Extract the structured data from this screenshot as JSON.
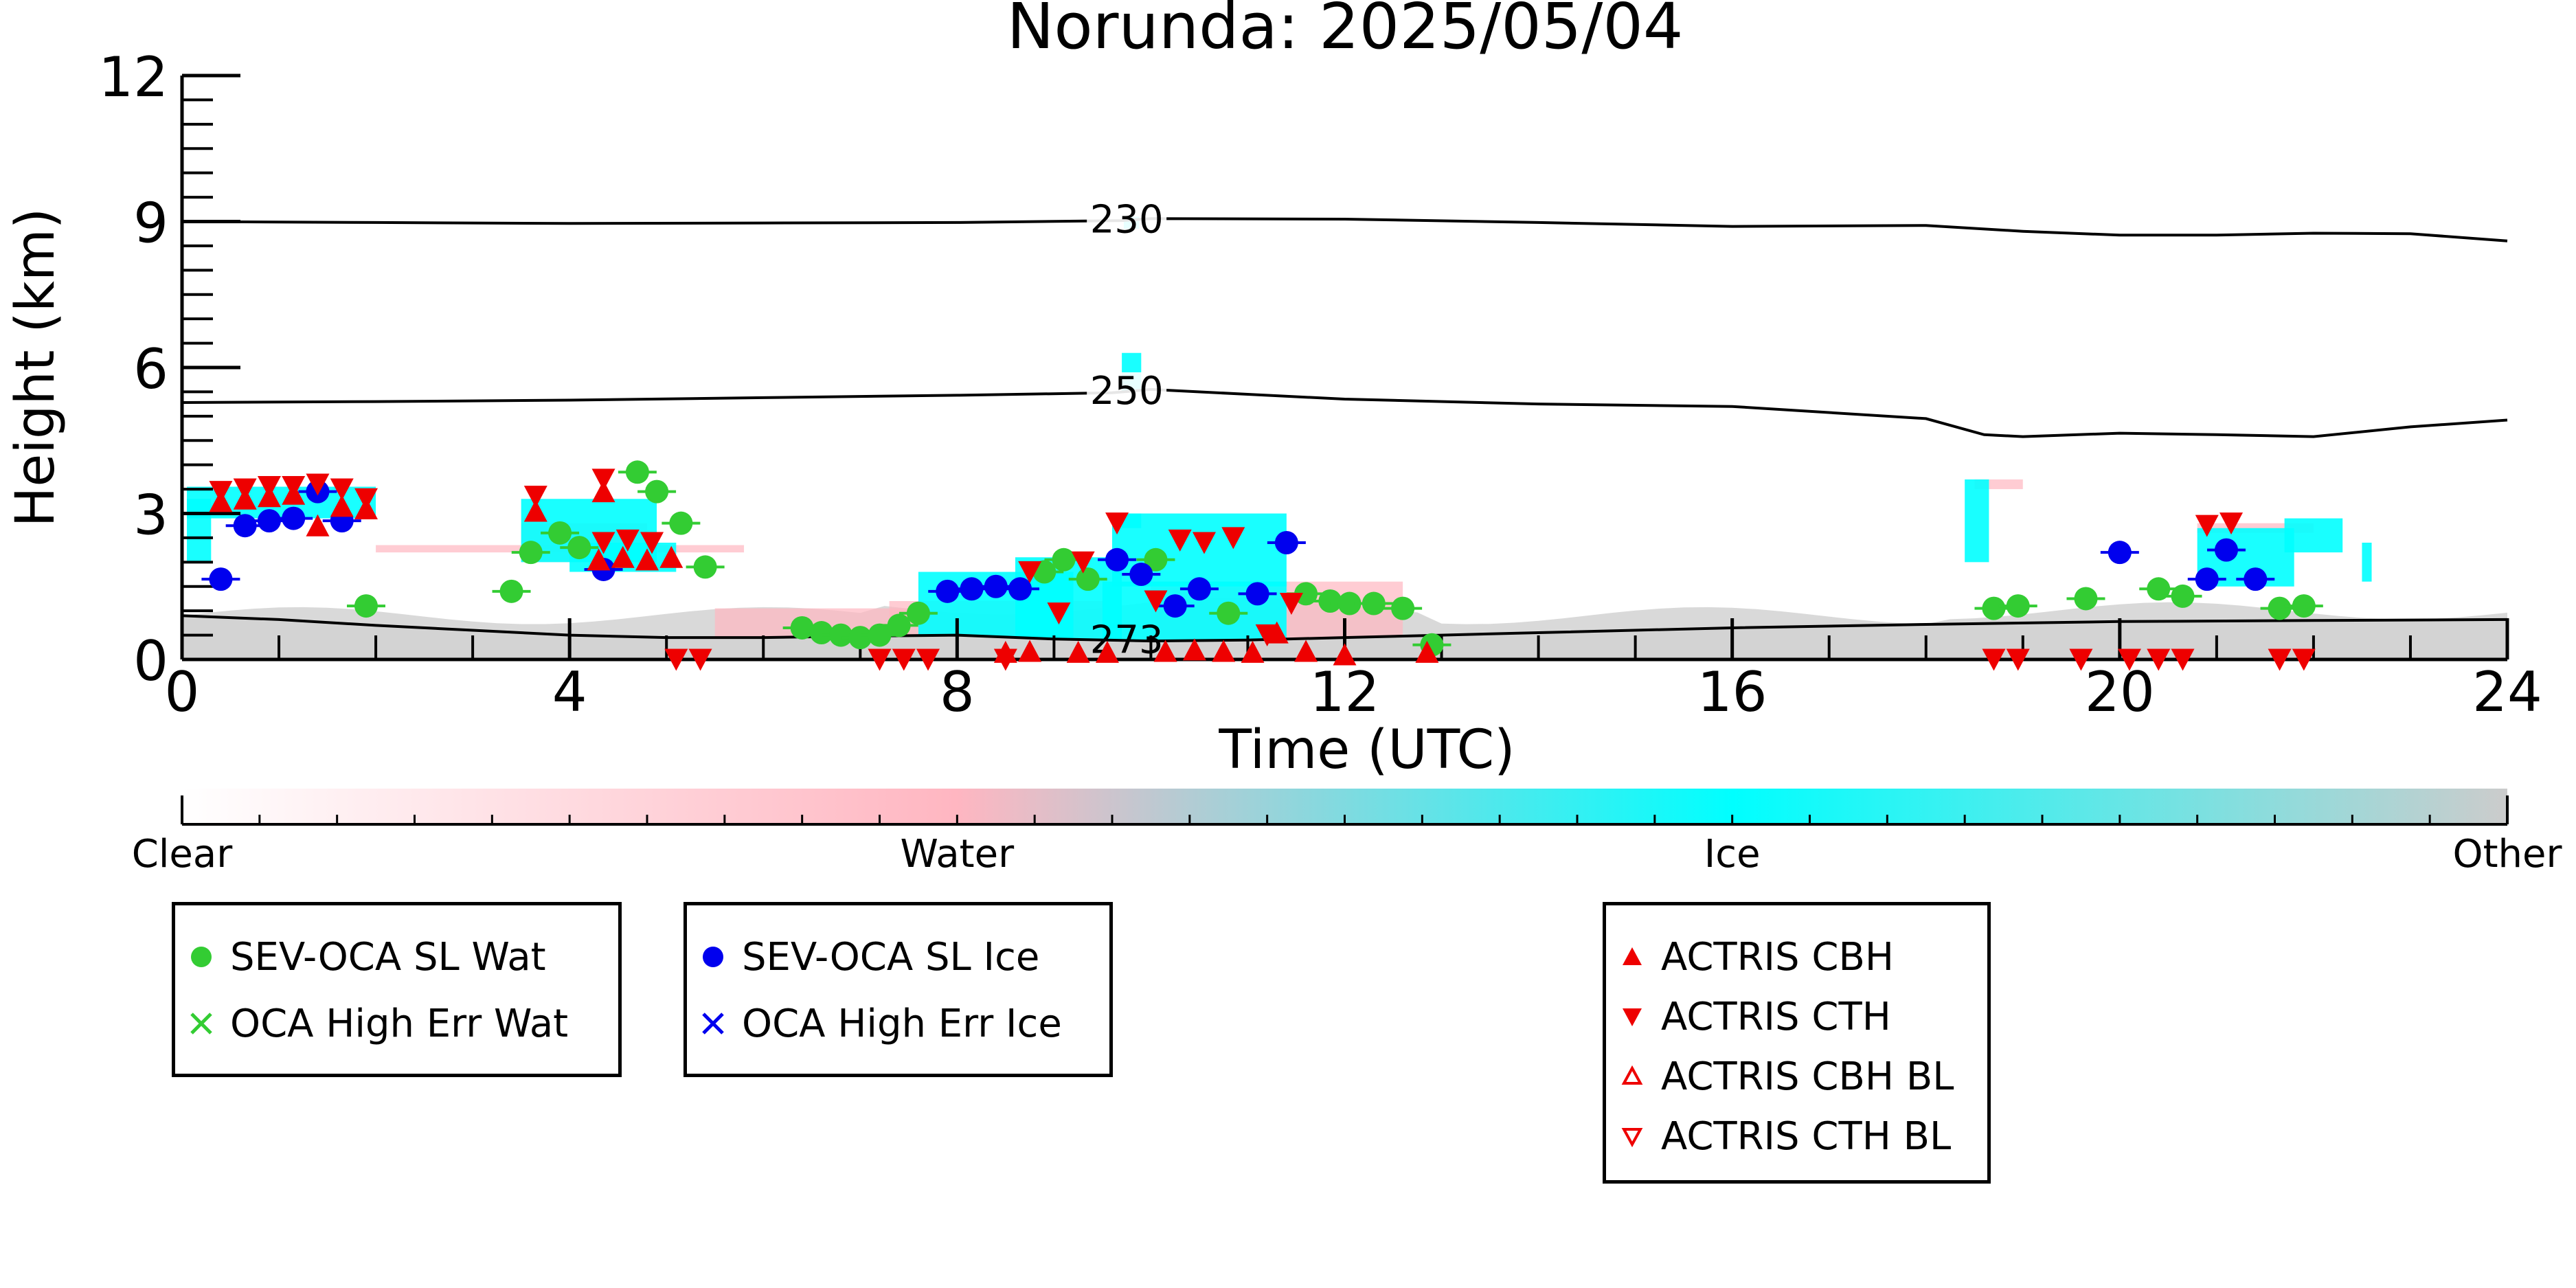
{
  "chart_data": {
    "type": "scatter",
    "title": "Norunda: 2025/05/04",
    "xlabel": "Time (UTC)",
    "ylabel": "Height (km)",
    "xlim": [
      0,
      24
    ],
    "ylim": [
      0,
      12
    ],
    "xticks": [
      0,
      4,
      8,
      12,
      16,
      20,
      24
    ],
    "yticks": [
      0,
      3,
      6,
      9,
      12
    ],
    "grid": false,
    "contours": [
      {
        "label": "230",
        "points": [
          [
            0,
            9.0
          ],
          [
            2,
            8.98
          ],
          [
            4,
            8.96
          ],
          [
            6,
            8.97
          ],
          [
            8,
            8.98
          ],
          [
            9.7,
            9.02
          ],
          [
            10,
            9.06
          ],
          [
            12,
            9.05
          ],
          [
            14,
            8.98
          ],
          [
            16,
            8.9
          ],
          [
            18,
            8.92
          ],
          [
            19,
            8.8
          ],
          [
            20,
            8.72
          ],
          [
            21,
            8.72
          ],
          [
            22,
            8.76
          ],
          [
            23,
            8.75
          ],
          [
            24,
            8.6
          ]
        ]
      },
      {
        "label": "250",
        "points": [
          [
            0,
            5.28
          ],
          [
            2,
            5.3
          ],
          [
            4,
            5.33
          ],
          [
            6,
            5.38
          ],
          [
            8,
            5.43
          ],
          [
            9.6,
            5.48
          ],
          [
            10,
            5.55
          ],
          [
            11,
            5.45
          ],
          [
            12,
            5.35
          ],
          [
            14,
            5.25
          ],
          [
            16,
            5.2
          ],
          [
            18,
            4.95
          ],
          [
            18.6,
            4.62
          ],
          [
            19,
            4.58
          ],
          [
            20,
            4.65
          ],
          [
            21,
            4.62
          ],
          [
            22,
            4.58
          ],
          [
            23,
            4.78
          ],
          [
            24,
            4.92
          ]
        ]
      },
      {
        "label": "273",
        "points": [
          [
            0,
            0.9
          ],
          [
            1,
            0.82
          ],
          [
            2,
            0.7
          ],
          [
            3,
            0.6
          ],
          [
            4,
            0.5
          ],
          [
            5,
            0.45
          ],
          [
            6,
            0.45
          ],
          [
            7,
            0.48
          ],
          [
            8,
            0.5
          ],
          [
            9,
            0.42
          ],
          [
            10,
            0.38
          ],
          [
            11,
            0.4
          ],
          [
            12,
            0.45
          ],
          [
            13,
            0.5
          ],
          [
            14,
            0.55
          ],
          [
            16,
            0.65
          ],
          [
            18,
            0.72
          ],
          [
            20,
            0.78
          ],
          [
            22,
            0.8
          ],
          [
            24,
            0.82
          ]
        ]
      }
    ],
    "series": [
      {
        "name": "SEV-OCA SL Wat",
        "color": "#33cc33",
        "marker": "circle",
        "points": [
          [
            1.9,
            1.1
          ],
          [
            3.4,
            1.4
          ],
          [
            3.6,
            2.2
          ],
          [
            3.9,
            2.6
          ],
          [
            4.1,
            2.3
          ],
          [
            4.7,
            3.85
          ],
          [
            4.9,
            3.45
          ],
          [
            5.15,
            2.8
          ],
          [
            5.4,
            1.9
          ],
          [
            6.4,
            0.65
          ],
          [
            6.6,
            0.55
          ],
          [
            6.8,
            0.5
          ],
          [
            7.0,
            0.45
          ],
          [
            7.2,
            0.5
          ],
          [
            7.4,
            0.7
          ],
          [
            7.6,
            0.95
          ],
          [
            8.9,
            1.8
          ],
          [
            9.1,
            2.05
          ],
          [
            9.35,
            1.65
          ],
          [
            10.05,
            2.05
          ],
          [
            10.8,
            0.95
          ],
          [
            11.6,
            1.35
          ],
          [
            11.85,
            1.2
          ],
          [
            12.05,
            1.15
          ],
          [
            12.3,
            1.15
          ],
          [
            12.6,
            1.05
          ],
          [
            12.9,
            0.3
          ],
          [
            18.7,
            1.05
          ],
          [
            18.95,
            1.1
          ],
          [
            19.65,
            1.25
          ],
          [
            20.4,
            1.45
          ],
          [
            20.65,
            1.3
          ],
          [
            21.65,
            1.05
          ],
          [
            21.9,
            1.1
          ]
        ]
      },
      {
        "name": "OCA High Err Wat",
        "color": "#33cc33",
        "marker": "x",
        "points": []
      },
      {
        "name": "SEV-OCA SL Ice",
        "color": "#0000ee",
        "marker": "circle",
        "points": [
          [
            0.4,
            1.65
          ],
          [
            0.65,
            2.75
          ],
          [
            0.9,
            2.85
          ],
          [
            1.15,
            2.9
          ],
          [
            1.4,
            3.45
          ],
          [
            1.65,
            2.85
          ],
          [
            4.35,
            1.85
          ],
          [
            7.9,
            1.4
          ],
          [
            8.15,
            1.45
          ],
          [
            8.4,
            1.5
          ],
          [
            8.65,
            1.45
          ],
          [
            9.65,
            2.05
          ],
          [
            9.9,
            1.75
          ],
          [
            10.25,
            1.1
          ],
          [
            10.5,
            1.45
          ],
          [
            11.1,
            1.35
          ],
          [
            11.4,
            2.4
          ],
          [
            20.0,
            2.2
          ],
          [
            20.9,
            1.65
          ],
          [
            21.1,
            2.25
          ],
          [
            21.4,
            1.65
          ]
        ]
      },
      {
        "name": "OCA High Err Ice",
        "color": "#0000ee",
        "marker": "x",
        "points": []
      },
      {
        "name": "ACTRIS CBH",
        "color": "#ee0000",
        "marker": "triangle-up",
        "points": [
          [
            0.4,
            3.2
          ],
          [
            0.65,
            3.25
          ],
          [
            0.9,
            3.3
          ],
          [
            1.15,
            3.35
          ],
          [
            1.4,
            2.7
          ],
          [
            1.65,
            3.1
          ],
          [
            1.9,
            3.05
          ],
          [
            3.65,
            3.0
          ],
          [
            4.35,
            3.4
          ],
          [
            4.3,
            2.0
          ],
          [
            4.55,
            2.05
          ],
          [
            4.8,
            2.0
          ],
          [
            5.05,
            2.05
          ],
          [
            8.5,
            0.1
          ],
          [
            8.75,
            0.12
          ],
          [
            9.25,
            0.1
          ],
          [
            9.55,
            0.1
          ],
          [
            10.15,
            0.12
          ],
          [
            10.45,
            0.15
          ],
          [
            10.75,
            0.12
          ],
          [
            11.05,
            0.1
          ],
          [
            11.3,
            0.5
          ],
          [
            11.6,
            0.12
          ],
          [
            12.0,
            0.05
          ],
          [
            12.85,
            0.1
          ]
        ]
      },
      {
        "name": "ACTRIS CTH",
        "color": "#ee0000",
        "marker": "triangle-down",
        "points": [
          [
            0.4,
            3.5
          ],
          [
            0.65,
            3.55
          ],
          [
            0.9,
            3.6
          ],
          [
            1.15,
            3.6
          ],
          [
            1.4,
            3.65
          ],
          [
            1.65,
            3.55
          ],
          [
            1.9,
            3.35
          ],
          [
            3.65,
            3.4
          ],
          [
            4.35,
            3.75
          ],
          [
            4.35,
            2.45
          ],
          [
            4.6,
            2.5
          ],
          [
            4.85,
            2.45
          ],
          [
            5.1,
            0.05
          ],
          [
            5.35,
            0.05
          ],
          [
            7.2,
            0.05
          ],
          [
            7.45,
            0.05
          ],
          [
            7.7,
            0.05
          ],
          [
            8.5,
            0.05
          ],
          [
            8.75,
            1.85
          ],
          [
            9.05,
            1.0
          ],
          [
            9.3,
            2.05
          ],
          [
            9.65,
            2.85
          ],
          [
            10.05,
            1.25
          ],
          [
            10.3,
            2.5
          ],
          [
            10.55,
            2.45
          ],
          [
            10.85,
            2.55
          ],
          [
            11.2,
            0.55
          ],
          [
            11.45,
            1.2
          ],
          [
            18.7,
            0.05
          ],
          [
            18.95,
            0.05
          ],
          [
            19.6,
            0.05
          ],
          [
            20.1,
            0.05
          ],
          [
            20.4,
            0.05
          ],
          [
            20.65,
            0.05
          ],
          [
            20.9,
            2.8
          ],
          [
            21.15,
            2.85
          ],
          [
            21.65,
            0.05
          ],
          [
            21.9,
            0.05
          ]
        ]
      },
      {
        "name": "ACTRIS CBH BL",
        "color": "#ee0000",
        "marker": "triangle-up-open",
        "points": []
      },
      {
        "name": "ACTRIS CTH BL",
        "color": "#ee0000",
        "marker": "triangle-down-open",
        "points": []
      }
    ],
    "colorbar": {
      "labels": [
        "Clear",
        "Water",
        "Ice",
        "Other"
      ],
      "colors": [
        "#ffffff",
        "#ffb6c1",
        "#00ffff",
        "#cccccc"
      ]
    },
    "background_layers": {
      "ice_color": "#00ffff",
      "water_color": "#ffb6c1",
      "other_color": "#cccccc"
    }
  }
}
